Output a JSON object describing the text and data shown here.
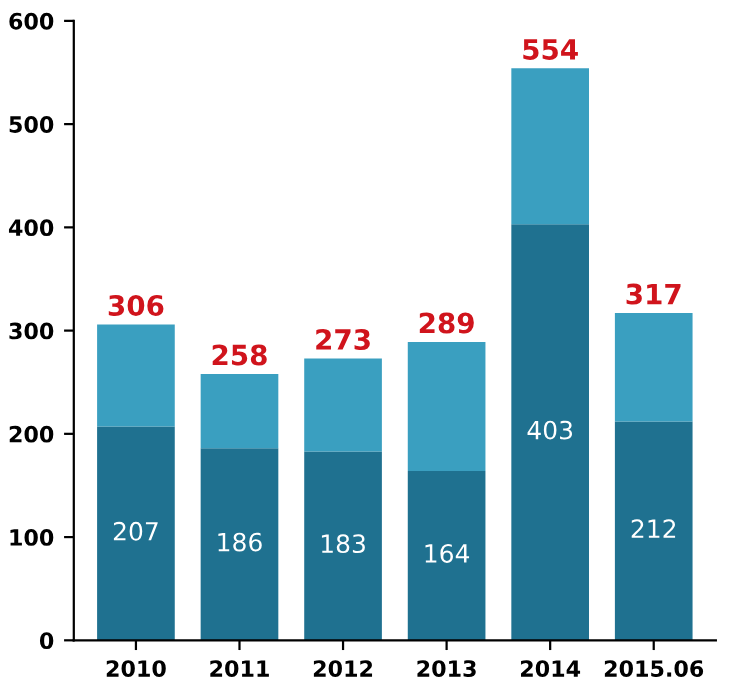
{
  "chart_data": {
    "type": "bar",
    "stacked": true,
    "categories": [
      "2010",
      "2011",
      "2012",
      "2013",
      "2014",
      "2015.06"
    ],
    "series": [
      {
        "color": "#1f7190",
        "values": [
          207,
          186,
          183,
          164,
          403,
          212
        ],
        "value_labels": [
          "207",
          "186",
          "183",
          "164",
          "403",
          "212"
        ]
      },
      {
        "color": "#3a9fc0",
        "values": [
          99,
          72,
          90,
          125,
          151,
          105
        ],
        "value_labels": [
          null,
          null,
          null,
          null,
          null,
          null
        ]
      }
    ],
    "totals": [
      "306",
      "258",
      "273",
      "289",
      "554",
      "317"
    ],
    "ylim": [
      0,
      600
    ],
    "yticks": [
      0,
      100,
      200,
      300,
      400,
      500,
      600
    ],
    "grid": false,
    "legend": false
  }
}
